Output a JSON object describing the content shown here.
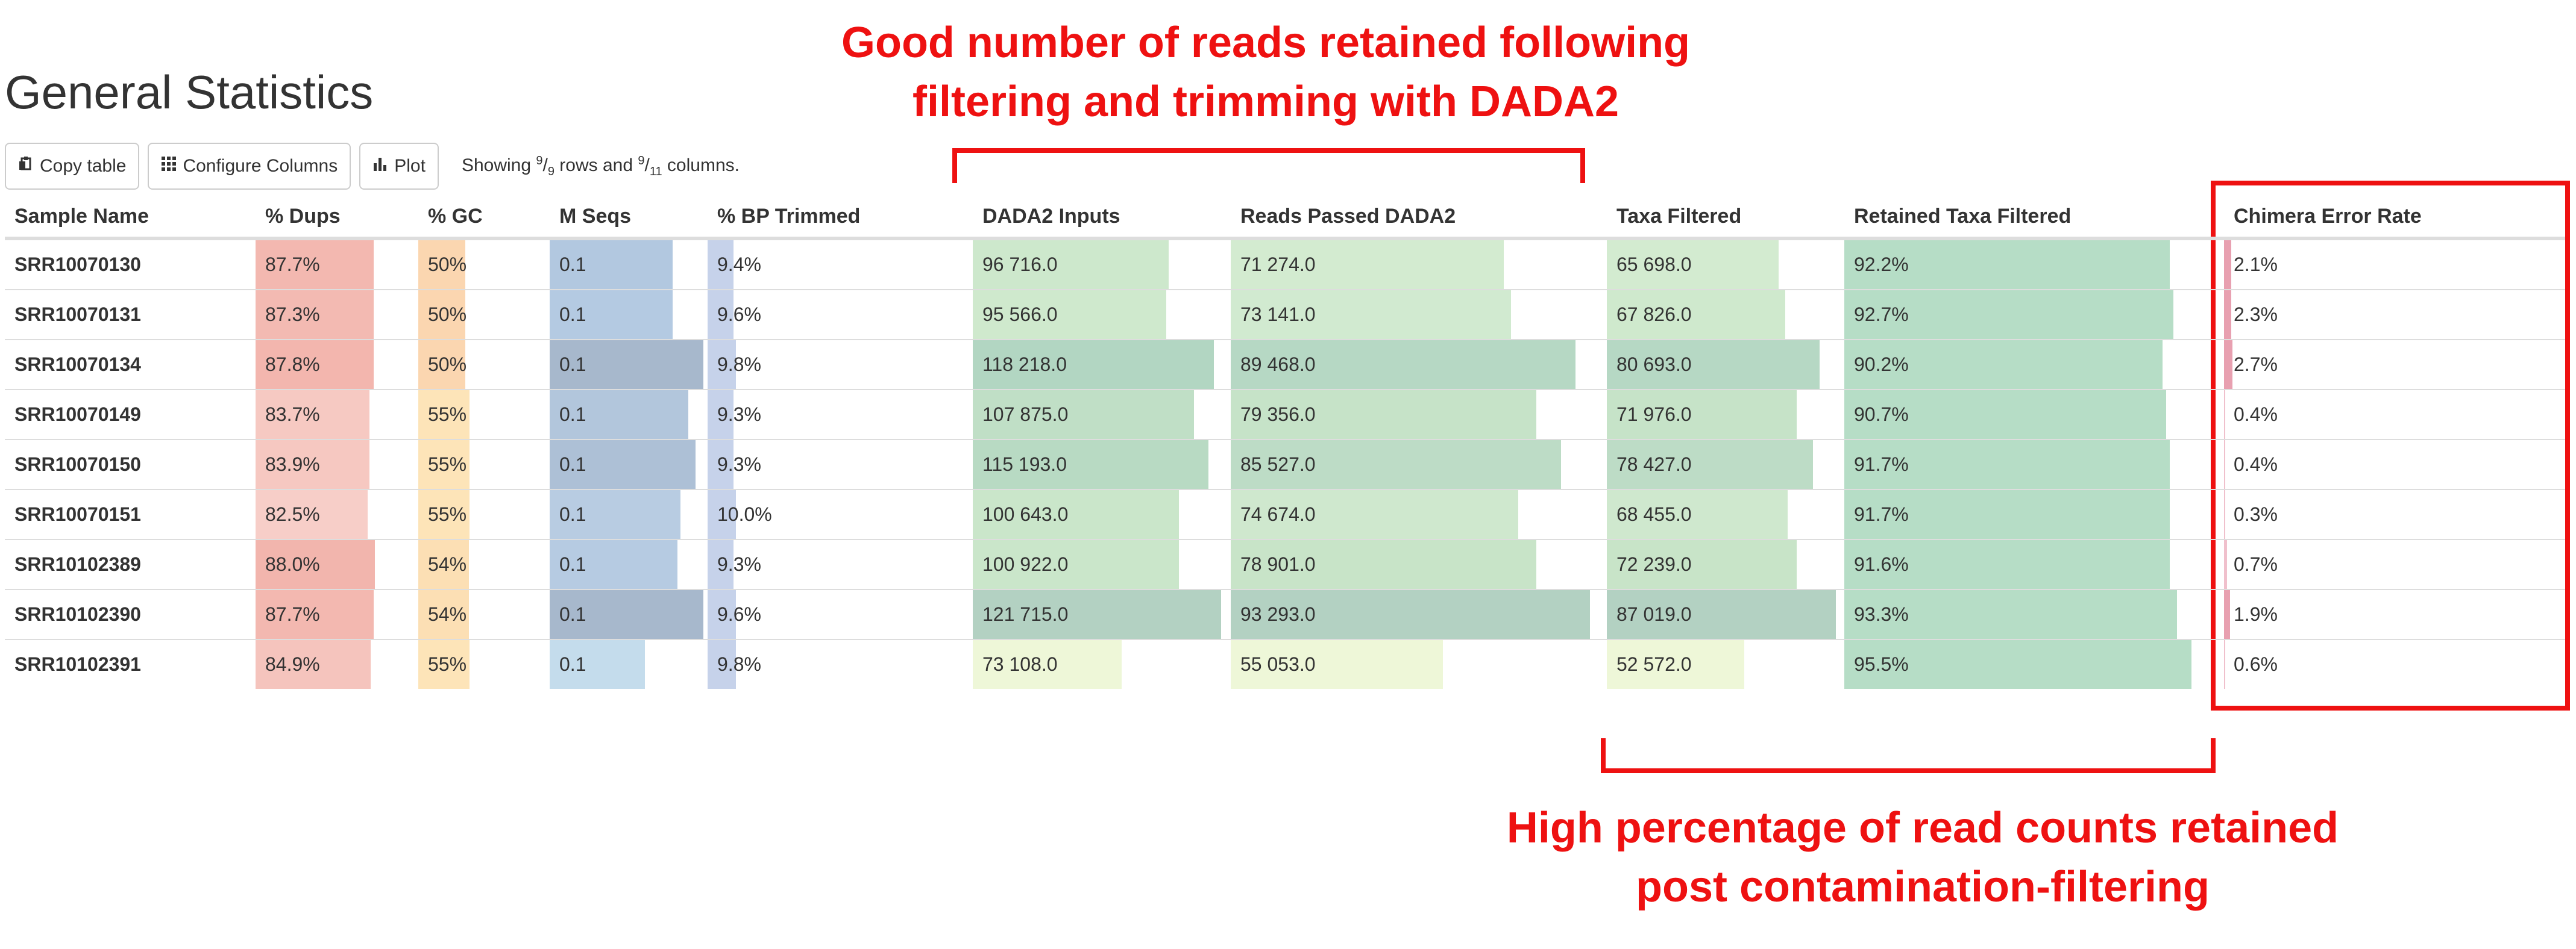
{
  "page_title": "General Statistics",
  "toolbar": {
    "copy_label": "Copy table",
    "configure_label": "Configure Columns",
    "plot_label": "Plot",
    "showing": {
      "prefix": "Showing ",
      "rows_shown": "9",
      "rows_sep": "/",
      "rows_total": "9",
      "mid": " rows and ",
      "cols_shown": "9",
      "cols_sep": "/",
      "cols_total": "11",
      "suffix": " columns."
    }
  },
  "annotations": {
    "top_line1": "Good number of reads retained following",
    "top_line2": "filtering and trimming with DADA2",
    "bottom_line1": "High percentage of read counts retained",
    "bottom_line2": "post contamination-filtering",
    "accent_color": "#ee1111"
  },
  "table": {
    "columns": [
      "Sample Name",
      "% Dups",
      "% GC",
      "M Seqs",
      "% BP Trimmed",
      "DADA2 Inputs",
      "Reads Passed DADA2",
      "Taxa Filtered",
      "Retained Taxa Filtered",
      "Chimera Error Rate"
    ],
    "rows": [
      {
        "sample": "SRR10070130",
        "dups": "87.7%",
        "gc": "50%",
        "mseqs": "0.1",
        "bp": "9.4%",
        "inputs": "96 716.0",
        "passed": "71 274.0",
        "taxa": "65 698.0",
        "retained": "92.2%",
        "chimera": "2.1%"
      },
      {
        "sample": "SRR10070131",
        "dups": "87.3%",
        "gc": "50%",
        "mseqs": "0.1",
        "bp": "9.6%",
        "inputs": "95 566.0",
        "passed": "73 141.0",
        "taxa": "67 826.0",
        "retained": "92.7%",
        "chimera": "2.3%"
      },
      {
        "sample": "SRR10070134",
        "dups": "87.8%",
        "gc": "50%",
        "mseqs": "0.1",
        "bp": "9.8%",
        "inputs": "118 218.0",
        "passed": "89 468.0",
        "taxa": "80 693.0",
        "retained": "90.2%",
        "chimera": "2.7%"
      },
      {
        "sample": "SRR10070149",
        "dups": "83.7%",
        "gc": "55%",
        "mseqs": "0.1",
        "bp": "9.3%",
        "inputs": "107 875.0",
        "passed": "79 356.0",
        "taxa": "71 976.0",
        "retained": "90.7%",
        "chimera": "0.4%"
      },
      {
        "sample": "SRR10070150",
        "dups": "83.9%",
        "gc": "55%",
        "mseqs": "0.1",
        "bp": "9.3%",
        "inputs": "115 193.0",
        "passed": "85 527.0",
        "taxa": "78 427.0",
        "retained": "91.7%",
        "chimera": "0.4%"
      },
      {
        "sample": "SRR10070151",
        "dups": "82.5%",
        "gc": "55%",
        "mseqs": "0.1",
        "bp": "10.0%",
        "inputs": "100 643.0",
        "passed": "74 674.0",
        "taxa": "68 455.0",
        "retained": "91.7%",
        "chimera": "0.3%"
      },
      {
        "sample": "SRR10102389",
        "dups": "88.0%",
        "gc": "54%",
        "mseqs": "0.1",
        "bp": "9.3%",
        "inputs": "100 922.0",
        "passed": "78 901.0",
        "taxa": "72 239.0",
        "retained": "91.6%",
        "chimera": "0.7%"
      },
      {
        "sample": "SRR10102390",
        "dups": "87.7%",
        "gc": "54%",
        "mseqs": "0.1",
        "bp": "9.6%",
        "inputs": "121 715.0",
        "passed": "93 293.0",
        "taxa": "87 019.0",
        "retained": "93.3%",
        "chimera": "1.9%"
      },
      {
        "sample": "SRR10102391",
        "dups": "84.9%",
        "gc": "55%",
        "mseqs": "0.1",
        "bp": "9.8%",
        "inputs": "73 108.0",
        "passed": "55 053.0",
        "taxa": "52 572.0",
        "retained": "95.5%",
        "chimera": "0.6%"
      }
    ],
    "bar_fill_fraction": {
      "dups": [
        0.85,
        0.85,
        0.85,
        0.82,
        0.82,
        0.81,
        0.86,
        0.85,
        0.83
      ],
      "gc": [
        0.5,
        0.5,
        0.5,
        0.55,
        0.55,
        0.55,
        0.54,
        0.54,
        0.55
      ],
      "mseqs": [
        0.8,
        0.8,
        1.0,
        0.9,
        0.95,
        0.85,
        0.83,
        1.0,
        0.62
      ],
      "bp": [
        0.1,
        0.1,
        0.11,
        0.1,
        0.1,
        0.11,
        0.1,
        0.11,
        0.11
      ],
      "inputs": [
        0.79,
        0.78,
        0.97,
        0.89,
        0.95,
        0.83,
        0.83,
        1.0,
        0.6
      ],
      "passed": [
        0.76,
        0.78,
        0.96,
        0.85,
        0.92,
        0.8,
        0.85,
        1.0,
        0.59
      ],
      "taxa": [
        0.75,
        0.78,
        0.93,
        0.83,
        0.9,
        0.79,
        0.83,
        1.0,
        0.6
      ],
      "retained": [
        0.9,
        0.91,
        0.88,
        0.89,
        0.9,
        0.9,
        0.9,
        0.92,
        0.96
      ],
      "chimera": [
        0.05,
        0.05,
        0.06,
        0.01,
        0.01,
        0.01,
        0.02,
        0.04,
        0.01
      ]
    },
    "bar_colors": {
      "dups": [
        "#f3b8b0",
        "#f3bab2",
        "#f3b6ae",
        "#f6c9c2",
        "#f6c8c1",
        "#f7cec8",
        "#f2b5ad",
        "#f3b8b0",
        "#f5c4bd"
      ],
      "gc": [
        "#fbd6b0",
        "#fbd6b0",
        "#fbd6b0",
        "#fde4b8",
        "#fde4b8",
        "#fde4b8",
        "#fcdfb4",
        "#fcdfb4",
        "#fde4b8"
      ],
      "mseqs": [
        "#b2c8e0",
        "#b4cae2",
        "#a7b8cc",
        "#b2c6dc",
        "#adc0d6",
        "#b8cce2",
        "#b6cbe2",
        "#a7b8cc",
        "#c4dcec"
      ],
      "bp": [
        "#c6d2ea",
        "#c6d2ea",
        "#c6d2ea",
        "#c6d2ea",
        "#c6d2ea",
        "#c6d2ea",
        "#c6d2ea",
        "#c6d2ea",
        "#c6d2ea"
      ],
      "inputs": [
        "#cde8cc",
        "#cfe9cd",
        "#b2d6c2",
        "#c0dfc6",
        "#b8dac3",
        "#cae6ca",
        "#cae6ca",
        "#b3d1c2",
        "#eef7d8"
      ],
      "passed": [
        "#d3ebd0",
        "#d1ead0",
        "#b6d8c4",
        "#c6e3c8",
        "#bddcc6",
        "#cfe8ce",
        "#c8e4c8",
        "#b3d1c2",
        "#eef7d8"
      ],
      "taxa": [
        "#d3ebd0",
        "#cfe9cd",
        "#b6d8c4",
        "#c6e3c8",
        "#bddcc6",
        "#cfe8ce",
        "#c8e4c8",
        "#b3d1c2",
        "#eef7d8"
      ],
      "retained": [
        "#b6ddc6",
        "#b6ddc6",
        "#b6ddc6",
        "#b6ddc6",
        "#b6ddc6",
        "#b6ddc6",
        "#b6ddc6",
        "#b6ddc6",
        "#b6ddc6"
      ],
      "chimera": [
        "#e8a0b0",
        "#e8a0b0",
        "#e8a0b0",
        "#f0c0cc",
        "#f0c0cc",
        "#f0c0cc",
        "#f0c0cc",
        "#e8a0b0",
        "#f0c0cc"
      ]
    }
  },
  "icons": {
    "copy": "clipboard-icon",
    "configure": "grid-icon",
    "plot": "bar-chart-icon"
  }
}
